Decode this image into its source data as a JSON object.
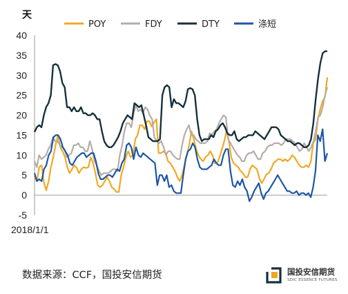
{
  "chart_data": {
    "type": "line",
    "unit_label": "天",
    "ylim": [
      -5,
      40
    ],
    "yticks": [
      "40",
      "35",
      "30",
      "25",
      "20",
      "15",
      "10",
      "5",
      "0",
      "-5"
    ],
    "x_start_label": "2018/1/1",
    "grid": false,
    "legend_position": "top",
    "series": [
      {
        "name": "POY",
        "color": "#F0A823",
        "values": [
          4.8,
          3.5,
          7,
          7.5,
          3.2,
          1.2,
          3.5,
          7,
          9.5,
          12.5,
          15,
          12,
          11,
          9.5,
          7,
          5.5,
          6.5,
          7.5,
          6.8,
          5.5,
          6.5,
          7,
          6.8,
          7,
          9.5,
          8,
          5.5,
          2.5,
          2,
          2.5,
          3.5,
          4.5,
          3.5,
          2,
          1.5,
          0.8,
          0.8,
          5,
          7,
          9.5,
          11,
          9.5,
          10,
          14,
          15,
          17.5,
          17.5,
          16.5,
          18.5,
          18.5,
          17.2,
          18.2,
          19,
          10.5,
          10.5,
          11,
          10.5,
          8.5,
          8,
          7,
          6,
          4.5,
          3.5,
          5,
          7.5,
          10,
          12.5,
          16,
          14,
          11.5,
          10,
          9,
          8.5,
          9.5,
          10,
          11,
          10,
          8,
          8,
          9.5,
          11.5,
          13.5,
          16,
          13.5,
          9.5,
          8,
          7.5,
          7,
          6,
          5.5,
          4.5,
          4.5,
          6.5,
          7.5,
          7,
          6.5,
          4.2,
          3,
          4,
          5.2,
          5.5,
          6.5,
          8,
          8.5,
          9,
          9,
          8.5,
          9,
          8.5,
          9,
          10,
          9.5,
          8.5,
          7.5,
          7,
          7,
          7.5,
          7,
          8.5,
          13,
          14,
          19,
          21.5,
          23.5,
          24.5,
          29.5
        ]
      },
      {
        "name": "FDY",
        "color": "#B5ACA7",
        "values": [
          8.5,
          7,
          10,
          9,
          9.5,
          10,
          11.5,
          12.5,
          14.5,
          13.5,
          13.5,
          12.5,
          12,
          11.5,
          9.5,
          10,
          10.5,
          12.5,
          12.5,
          13,
          12,
          12,
          11,
          11,
          13.5,
          11.5,
          8.5,
          7.5,
          6,
          5,
          5.5,
          5.5,
          5.5,
          6,
          6.5,
          6.5,
          6,
          10,
          12.5,
          16,
          18,
          18,
          17,
          20.5,
          22.5,
          21,
          21.5,
          20.5,
          22,
          21.5,
          20,
          19,
          14.5,
          13.5,
          13,
          13.5,
          12,
          10,
          11,
          11,
          10,
          9.5,
          9,
          9,
          12.5,
          15,
          16.5,
          17.5,
          15,
          15,
          14,
          13.5,
          13,
          13,
          13,
          13.5,
          15.5,
          15,
          16,
          16.5,
          18,
          19,
          20,
          19.5,
          14,
          13,
          12,
          11,
          10,
          9.5,
          8.5,
          8.5,
          10,
          10.5,
          10.5,
          11,
          10,
          9,
          9,
          10.5,
          11,
          12,
          12.5,
          12.5,
          13,
          13,
          13,
          12.5,
          13,
          14,
          14,
          14,
          13.5,
          13,
          12,
          11,
          11.5,
          13,
          12,
          11,
          12,
          13.5,
          16,
          19.5,
          20,
          22,
          25,
          27
        ]
      },
      {
        "name": "DTY",
        "color": "#16303B",
        "values": [
          15.8,
          17,
          17.5,
          17,
          20,
          22,
          23,
          25,
          32.5,
          32.8,
          32.5,
          31,
          28,
          27,
          22,
          22,
          21,
          22,
          21,
          21,
          22,
          20.5,
          20.5,
          20,
          20,
          20.5,
          20,
          19,
          19,
          16,
          13.5,
          12.5,
          12,
          12,
          12.5,
          13.5,
          14.5,
          16,
          18,
          19,
          20,
          19.5,
          19,
          23,
          22.5,
          22,
          22.5,
          20,
          17.5,
          14.5,
          14,
          13.5,
          13.5,
          13.5,
          14,
          25,
          27,
          27.5,
          27,
          22,
          24,
          23,
          23,
          22.5,
          22,
          23.5,
          26.5,
          26.8,
          26.5,
          25,
          19,
          15,
          13.5,
          14,
          14,
          14,
          15,
          14.5,
          16,
          16.5,
          17.5,
          18,
          17,
          15.5,
          15,
          15,
          16,
          14,
          13.5,
          14,
          14.5,
          14.5,
          15,
          15,
          15,
          16,
          15.5,
          15,
          14.5,
          14,
          15,
          16,
          17,
          17,
          17,
          16.5,
          15,
          14.5,
          14,
          13.5,
          13.5,
          13,
          12.5,
          13,
          13,
          12.5,
          12,
          12,
          12.5,
          14,
          18,
          24,
          29,
          33,
          35.5,
          36,
          36
        ]
      },
      {
        "name": "涤短",
        "color": "#1C56A4",
        "values": [
          5.5,
          3.5,
          4,
          3.5,
          6.5,
          7.5,
          10,
          11,
          14.5,
          15,
          15,
          14,
          12,
          11,
          10,
          8,
          7.5,
          8.5,
          9.5,
          10,
          10.5,
          10.5,
          9.5,
          10,
          10.5,
          10.5,
          8.5,
          5.5,
          4,
          4,
          4.5,
          5,
          5,
          4.5,
          5.5,
          6.5,
          6,
          8,
          9,
          12.5,
          13,
          12,
          9,
          12,
          10,
          9.5,
          10.5,
          10,
          9.5,
          9,
          8.5,
          8,
          2.5,
          5,
          5,
          3.5,
          5,
          2,
          2.5,
          1,
          0.5,
          0.5,
          0.5,
          5,
          9,
          11,
          11.5,
          13,
          12,
          9,
          7,
          6.5,
          6.5,
          6.5,
          7,
          7.5,
          9,
          8,
          7.5,
          7.5,
          10,
          11.5,
          11.5,
          6,
          2.5,
          2,
          3.5,
          2.5,
          4,
          2,
          1,
          -1.5,
          -0.5,
          1,
          2,
          3,
          0.5,
          -1,
          0.5,
          1,
          2,
          3,
          4,
          5,
          4,
          3,
          2,
          1,
          1,
          0.5,
          0.5,
          1,
          0,
          0.5,
          0.5,
          0,
          0.5,
          -0.5,
          2,
          6,
          15,
          13.5,
          16.5,
          8.5,
          10.5
        ]
      }
    ]
  },
  "source": "数据来源：CCF，国投安信期货",
  "logo": {
    "name": "国投安信期货",
    "sub": "SDIC ESSENCE FUTURES"
  }
}
